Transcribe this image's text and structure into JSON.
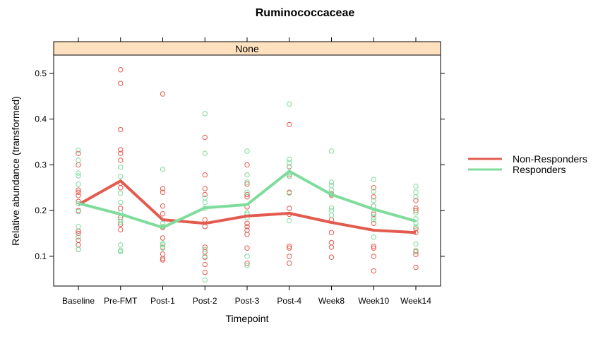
{
  "chart_data": {
    "type": "line",
    "title": "Ruminococcaceae",
    "panel_label": "None",
    "xlabel": "Timepoint",
    "ylabel": "Relative abundance (transformed)",
    "categories": [
      "Baseline",
      "Pre-FMT",
      "Post-1",
      "Post-2",
      "Post-3",
      "Post-4",
      "Week8",
      "Week10",
      "Week14"
    ],
    "yticks": [
      0.1,
      0.2,
      0.3,
      0.4,
      0.5
    ],
    "ylim": [
      0.035,
      0.54
    ],
    "grid": false,
    "legend_position": "right",
    "series": [
      {
        "name": "Non-Responders",
        "color": "#e35b4f",
        "mean": [
          0.213,
          0.265,
          0.18,
          0.172,
          0.188,
          0.194,
          0.174,
          0.157,
          0.152
        ],
        "points": [
          [
            0.325,
            0.3,
            0.245,
            0.24,
            0.233,
            0.22,
            0.2,
            0.155,
            0.15,
            0.135,
            0.125,
            0.115
          ],
          [
            0.508,
            0.478,
            0.377,
            0.333,
            0.325,
            0.31,
            0.26,
            0.25,
            0.205,
            0.185,
            0.17,
            0.158
          ],
          [
            0.455,
            0.248,
            0.24,
            0.21,
            0.193,
            0.163,
            0.14,
            0.12,
            0.105,
            0.095,
            0.092
          ],
          [
            0.36,
            0.278,
            0.248,
            0.235,
            0.18,
            0.165,
            0.12,
            0.11,
            0.098,
            0.082,
            0.065
          ],
          [
            0.3,
            0.258,
            0.235,
            0.23,
            0.208,
            0.172,
            0.165,
            0.157,
            0.148,
            0.118,
            0.085
          ],
          [
            0.388,
            0.296,
            0.278,
            0.24,
            0.205,
            0.192,
            0.122,
            0.118,
            0.1,
            0.085
          ],
          [
            0.237,
            0.233,
            0.18,
            0.152,
            0.13,
            0.12,
            0.098
          ],
          [
            0.25,
            0.23,
            0.21,
            0.192,
            0.172,
            0.122,
            0.118,
            0.1,
            0.068
          ],
          [
            0.222,
            0.205,
            0.2,
            0.16,
            0.152,
            0.11,
            0.104,
            0.076
          ]
        ]
      },
      {
        "name": "Responders",
        "color": "#7fdc9c",
        "mean": [
          0.216,
          0.192,
          0.163,
          0.206,
          0.213,
          0.286,
          0.235,
          0.203,
          0.177
        ],
        "points": [
          [
            0.332,
            0.31,
            0.282,
            0.276,
            0.258,
            0.215,
            0.198,
            0.165,
            0.142,
            0.115
          ],
          [
            0.295,
            0.275,
            0.238,
            0.218,
            0.195,
            0.18,
            0.175,
            0.125,
            0.113,
            0.11
          ],
          [
            0.29,
            0.172,
            0.165,
            0.128,
            0.125,
            0.118
          ],
          [
            0.412,
            0.325,
            0.228,
            0.218,
            0.205,
            0.115,
            0.1,
            0.048
          ],
          [
            0.33,
            0.278,
            0.262,
            0.24,
            0.195,
            0.192,
            0.185,
            0.1,
            0.08
          ],
          [
            0.433,
            0.312,
            0.305,
            0.295,
            0.282,
            0.275,
            0.238,
            0.178
          ],
          [
            0.33,
            0.262,
            0.255,
            0.245,
            0.235,
            0.206,
            0.2,
            0.19
          ],
          [
            0.268,
            0.242,
            0.222,
            0.21,
            0.195,
            0.185,
            0.18,
            0.142
          ],
          [
            0.253,
            0.24,
            0.23,
            0.195,
            0.182,
            0.172,
            0.165,
            0.127,
            0.113
          ]
        ]
      }
    ]
  }
}
